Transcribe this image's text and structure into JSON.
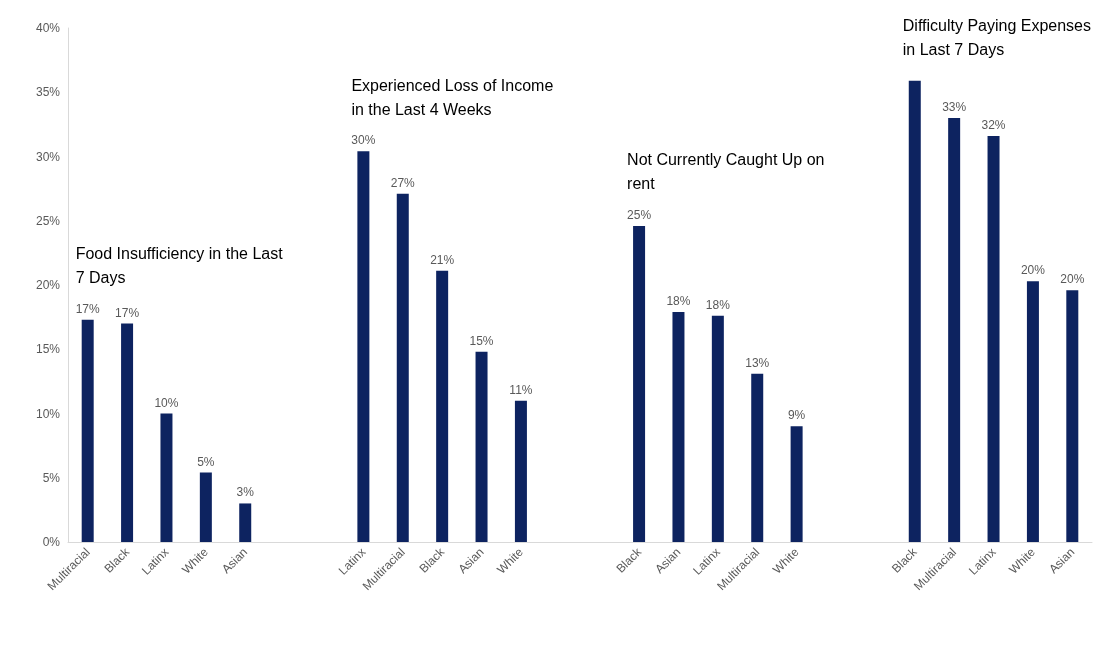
{
  "chart_data": {
    "type": "bar",
    "categories": [
      "Multiracial",
      "Black",
      "Latinx",
      "White",
      "Asian",
      null,
      null,
      "Latinx",
      "Multiracial",
      "Black",
      "Asian",
      "White",
      null,
      null,
      "Black",
      "Asian",
      "Latinx",
      "Multiracial",
      "White",
      null,
      null,
      "Black",
      "Multiracial",
      "Latinx",
      "White",
      "Asian"
    ],
    "values": [
      17.3,
      17,
      10,
      5.4,
      3,
      null,
      null,
      30.4,
      27.1,
      21.1,
      14.8,
      11,
      null,
      null,
      24.6,
      17.9,
      17.6,
      13.1,
      9,
      null,
      null,
      35.9,
      33,
      31.6,
      20.3,
      19.6
    ],
    "value_labels": [
      "17%",
      "17%",
      "10%",
      "5%",
      "3%",
      null,
      null,
      "30%",
      "27%",
      "21%",
      "15%",
      "11%",
      null,
      null,
      "25%",
      "18%",
      "18%",
      "13%",
      "9%",
      null,
      null,
      null,
      "33%",
      "32%",
      "20%",
      "20%"
    ],
    "color": "#0d2360",
    "ylim": [
      0,
      40
    ],
    "yticks": [
      {
        "value": 0,
        "label": "0%"
      },
      {
        "value": 5,
        "label": "5%"
      },
      {
        "value": 10,
        "label": "10%"
      },
      {
        "value": 15,
        "label": "15%"
      },
      {
        "value": 20,
        "label": "20%"
      },
      {
        "value": 25,
        "label": "25%"
      },
      {
        "value": 30,
        "label": "30%"
      },
      {
        "value": 35,
        "label": "35%"
      },
      {
        "value": 40,
        "label": "40%"
      }
    ],
    "annotations": [
      "Food Insufficiency in the Last 7 Days",
      "Experienced Loss of Income in the Last 4 Weeks",
      "Not Currently Caught Up on rent",
      "Difficulty Paying Expenses in Last 7 Days"
    ],
    "grid": false
  }
}
